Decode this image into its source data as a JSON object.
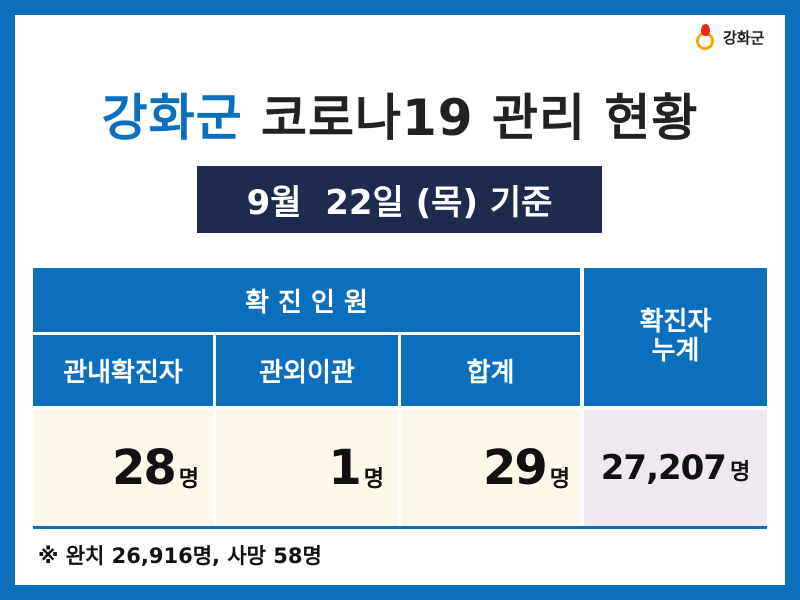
{
  "logo": {
    "text": "강화군"
  },
  "title": {
    "part1": "강화군",
    "part2": "코로나19 관리 현황"
  },
  "date": "9월  22일 (목) 기준",
  "table": {
    "group_header": "확 진 인 원",
    "columns": [
      "관내확진자",
      "관외이관",
      "합계"
    ],
    "cumulative_header": "확진자\n누계",
    "values": [
      "28",
      "1",
      "29"
    ],
    "cumulative_value": "27,207",
    "unit": "명"
  },
  "note": "※ 완치 26,916명, 사망 58명",
  "colors": {
    "brand_blue": "#0b6fbd",
    "navy": "#1f2a4f",
    "value_bg": "#fdf8e9",
    "cumulative_bg": "#efe8f1"
  }
}
